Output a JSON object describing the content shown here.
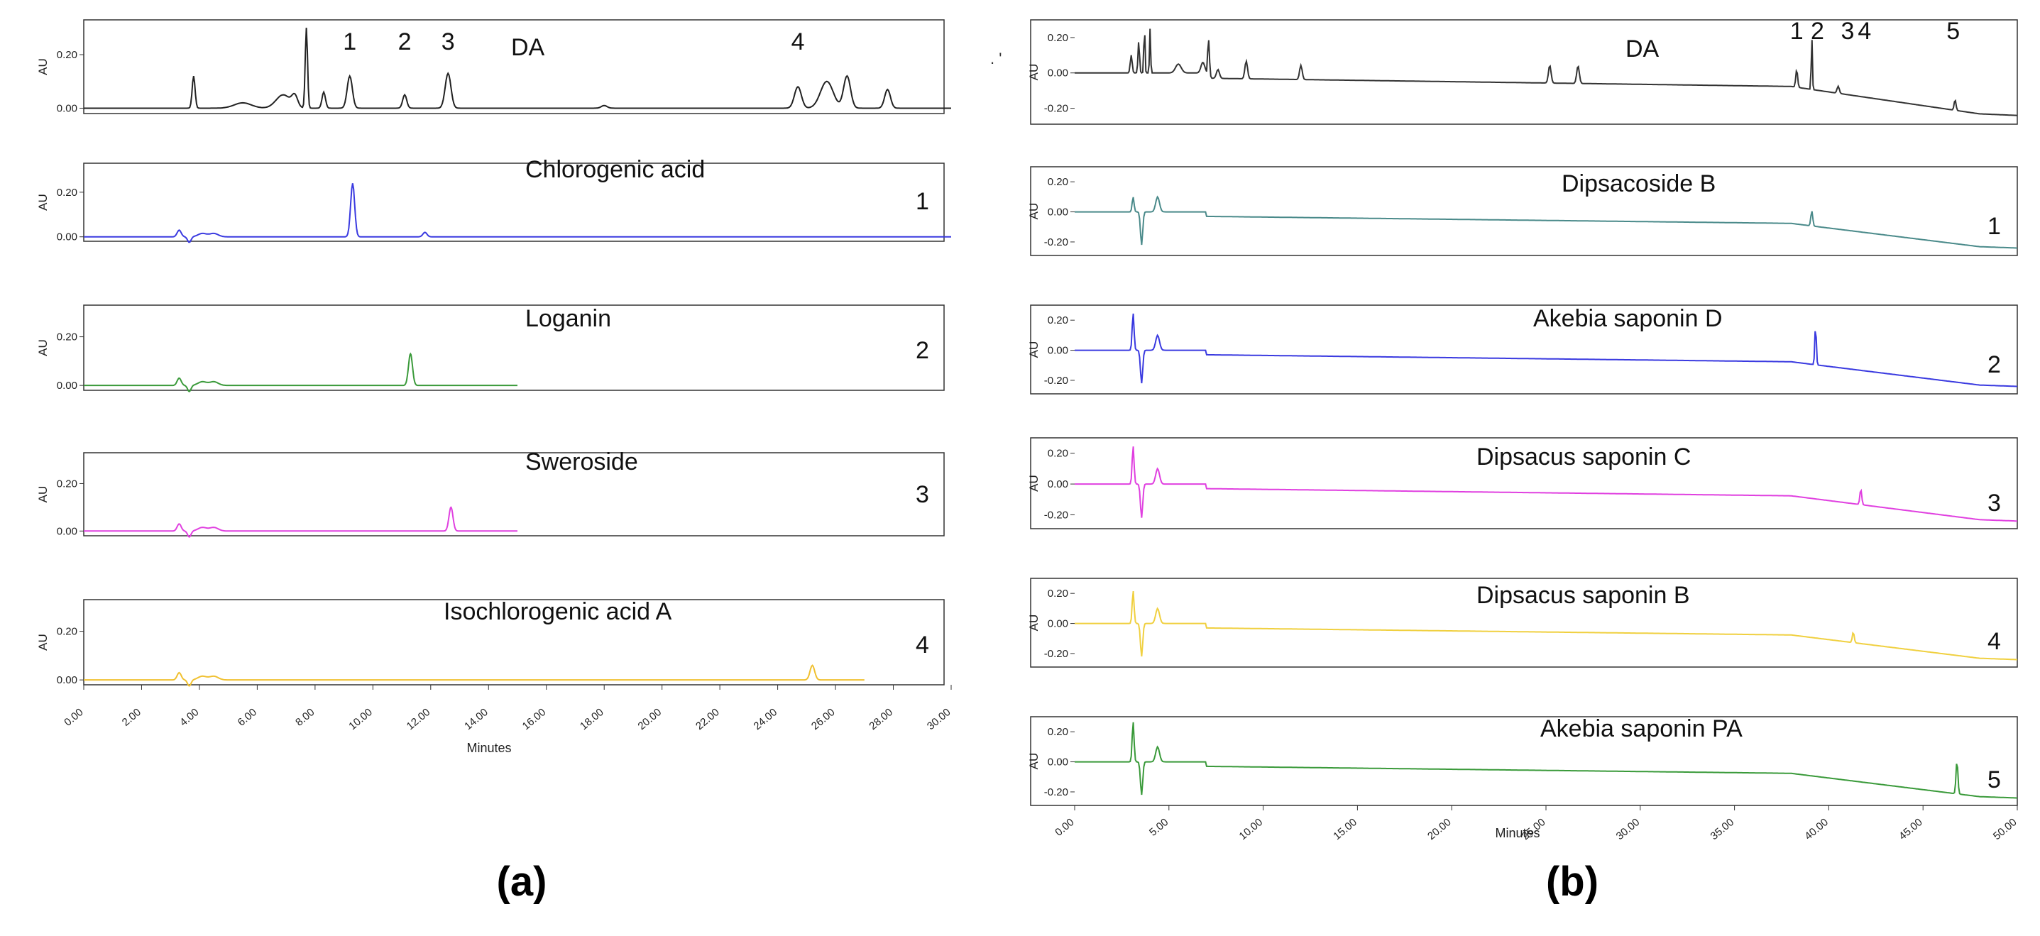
{
  "chart_data": [
    {
      "type": "line",
      "caption": "(a)",
      "xlabel": "Minutes",
      "ylabel": "AU",
      "xlim": [
        0,
        30
      ],
      "ylim": [
        -0.02,
        0.33
      ],
      "x_ticks": [
        "0.00",
        "2.00",
        "4.00",
        "6.00",
        "8.00",
        "10.00",
        "12.00",
        "14.00",
        "16.00",
        "18.00",
        "20.00",
        "22.00",
        "24.00",
        "26.00",
        "28.00",
        "30.00"
      ],
      "y_ticks": [
        "0.00",
        "0.20"
      ],
      "panels": [
        {
          "label": "DA",
          "index": "",
          "color": "#222222",
          "x_end": 30,
          "baseline": 0.0,
          "drift": 0,
          "peaks": [
            [
              3.8,
              0.12,
              0.05
            ],
            [
              5.5,
              0.02,
              0.3
            ],
            [
              6.9,
              0.05,
              0.25
            ],
            [
              7.3,
              0.04,
              0.1
            ],
            [
              7.7,
              0.3,
              0.04
            ],
            [
              8.3,
              0.06,
              0.06
            ],
            [
              9.2,
              0.12,
              0.09
            ],
            [
              11.1,
              0.05,
              0.07
            ],
            [
              12.6,
              0.13,
              0.1
            ],
            [
              18.0,
              0.01,
              0.1
            ],
            [
              24.7,
              0.08,
              0.12
            ],
            [
              25.7,
              0.1,
              0.22
            ],
            [
              26.4,
              0.12,
              0.12
            ],
            [
              27.8,
              0.07,
              0.1
            ]
          ],
          "dips": [],
          "peak_labels": [
            {
              "text": "1",
              "x": 9.2
            },
            {
              "text": "2",
              "x": 11.1
            },
            {
              "text": "3",
              "x": 12.6
            },
            {
              "text": "4",
              "x": 24.7
            }
          ]
        },
        {
          "label": "Chlorogenic acid",
          "index": "1",
          "color": "#3a3ae0",
          "x_end": 30,
          "baseline": 0.0,
          "drift": 0,
          "peaks": [
            [
              3.3,
              0.03,
              0.07
            ],
            [
              4.1,
              0.015,
              0.15
            ],
            [
              4.5,
              0.015,
              0.15
            ],
            [
              9.3,
              0.24,
              0.07
            ],
            [
              11.8,
              0.02,
              0.07
            ]
          ],
          "dips": [
            [
              3.65,
              -0.025,
              0.06
            ]
          ],
          "peak_labels": []
        },
        {
          "label": "Loganin",
          "index": "2",
          "color": "#3a9a3a",
          "x_end": 15,
          "baseline": 0.0,
          "drift": 0,
          "peaks": [
            [
              3.3,
              0.03,
              0.07
            ],
            [
              4.1,
              0.015,
              0.15
            ],
            [
              4.5,
              0.015,
              0.15
            ],
            [
              11.3,
              0.13,
              0.07
            ]
          ],
          "dips": [
            [
              3.65,
              -0.025,
              0.06
            ]
          ],
          "peak_labels": []
        },
        {
          "label": "Sweroside",
          "index": "3",
          "color": "#e040e0",
          "x_end": 15,
          "baseline": 0.0,
          "drift": 0,
          "peaks": [
            [
              3.3,
              0.03,
              0.07
            ],
            [
              4.1,
              0.015,
              0.15
            ],
            [
              4.5,
              0.015,
              0.15
            ],
            [
              12.7,
              0.1,
              0.07
            ]
          ],
          "dips": [
            [
              3.65,
              -0.025,
              0.06
            ]
          ],
          "peak_labels": []
        },
        {
          "label": "Isochlorogenic acid A",
          "index": "4",
          "color": "#f0c030",
          "x_end": 27,
          "baseline": 0.0,
          "drift": 0,
          "peaks": [
            [
              3.3,
              0.03,
              0.07
            ],
            [
              4.1,
              0.015,
              0.15
            ],
            [
              4.5,
              0.015,
              0.15
            ],
            [
              25.2,
              0.06,
              0.08
            ]
          ],
          "dips": [
            [
              3.65,
              -0.025,
              0.06
            ]
          ],
          "peak_labels": []
        }
      ]
    },
    {
      "type": "line",
      "caption": "(b)",
      "xlabel": "Minutes",
      "ylabel": "AU",
      "xlim": [
        0,
        50
      ],
      "ylim": [
        -0.29,
        0.3
      ],
      "x_ticks": [
        "0.00",
        "5.00",
        "10.00",
        "15.00",
        "20.00",
        "25.00",
        "30.00",
        "35.00",
        "40.00",
        "45.00",
        "50.00"
      ],
      "y_ticks": [
        "0.20",
        "0.00",
        "-0.20"
      ],
      "stray_mark": ". '",
      "panels": [
        {
          "label": "DA",
          "index": "",
          "color": "#333333",
          "x_end": 50,
          "baseline": 0.0,
          "drift": 1,
          "peaks": [
            [
              3.0,
              0.1,
              0.05
            ],
            [
              3.4,
              0.18,
              0.04
            ],
            [
              3.7,
              0.28,
              0.03
            ],
            [
              4.0,
              0.25,
              0.03
            ],
            [
              5.5,
              0.05,
              0.15
            ],
            [
              6.8,
              0.06,
              0.1
            ],
            [
              7.1,
              0.22,
              0.05
            ],
            [
              7.6,
              0.05,
              0.08
            ],
            [
              9.1,
              0.1,
              0.07
            ],
            [
              12.0,
              0.08,
              0.07
            ],
            [
              25.2,
              0.1,
              0.07
            ],
            [
              26.7,
              0.1,
              0.07
            ],
            [
              38.3,
              0.1,
              0.05
            ],
            [
              39.1,
              0.3,
              0.03
            ],
            [
              40.5,
              0.04,
              0.06
            ],
            [
              46.7,
              0.06,
              0.05
            ]
          ],
          "dips": [],
          "peak_labels": [
            {
              "text": "1",
              "x": 38.3
            },
            {
              "text": "2",
              "x": 39.4
            },
            {
              "text": "3",
              "x": 41.0
            },
            {
              "text": "4",
              "x": 41.9
            },
            {
              "text": "5",
              "x": 46.6
            }
          ]
        },
        {
          "label": "Dipsacoside B",
          "index": "1",
          "color": "#4a8a8a",
          "x_end": 50,
          "baseline": 0.0,
          "drift": 1,
          "peaks": [
            [
              3.1,
              0.1,
              0.05
            ],
            [
              4.4,
              0.1,
              0.1
            ],
            [
              39.1,
              0.1,
              0.05
            ]
          ],
          "dips": [
            [
              3.55,
              -0.22,
              0.06
            ]
          ],
          "peak_labels": []
        },
        {
          "label": "Akebia saponin D",
          "index": "2",
          "color": "#3a3ae0",
          "x_end": 50,
          "baseline": 0.0,
          "drift": 1,
          "peaks": [
            [
              3.1,
              0.25,
              0.05
            ],
            [
              4.4,
              0.1,
              0.1
            ],
            [
              39.3,
              0.26,
              0.04
            ]
          ],
          "dips": [
            [
              3.55,
              -0.22,
              0.06
            ]
          ],
          "peak_labels": []
        },
        {
          "label": "Dipsacus saponin C",
          "index": "3",
          "color": "#e040e0",
          "x_end": 50,
          "baseline": 0.0,
          "drift": 1,
          "peaks": [
            [
              3.1,
              0.25,
              0.05
            ],
            [
              4.4,
              0.1,
              0.1
            ],
            [
              41.7,
              0.1,
              0.05
            ]
          ],
          "dips": [
            [
              3.55,
              -0.22,
              0.06
            ]
          ],
          "peak_labels": []
        },
        {
          "label": "Dipsacus saponin B",
          "index": "4",
          "color": "#f0d040",
          "x_end": 50,
          "baseline": 0.0,
          "drift": 1,
          "peaks": [
            [
              3.1,
              0.22,
              0.05
            ],
            [
              4.4,
              0.1,
              0.1
            ],
            [
              41.3,
              0.07,
              0.05
            ]
          ],
          "dips": [
            [
              3.55,
              -0.22,
              0.06
            ]
          ],
          "peak_labels": []
        },
        {
          "label": "Akebia saponin PA",
          "index": "5",
          "color": "#3a9a3a",
          "x_end": 50,
          "baseline": 0.0,
          "drift": 1,
          "peaks": [
            [
              3.1,
              0.27,
              0.05
            ],
            [
              4.4,
              0.1,
              0.1
            ],
            [
              46.8,
              0.22,
              0.05
            ]
          ],
          "dips": [
            [
              3.55,
              -0.22,
              0.06
            ]
          ],
          "peak_labels": []
        }
      ]
    }
  ]
}
